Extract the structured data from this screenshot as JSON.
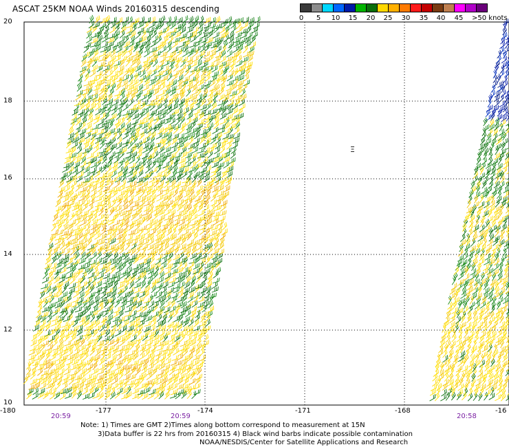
{
  "title": "ASCAT 25KM NOAA Winds 20160315 descending",
  "colorbar": {
    "colors": [
      "#3a3a3a",
      "#8c8c8c",
      "#00d8ff",
      "#0066ff",
      "#001aa8",
      "#00b400",
      "#0a6e0a",
      "#ffd800",
      "#ffb000",
      "#ff7a00",
      "#ff1a1a",
      "#c40000",
      "#7a3b12",
      "#c08050",
      "#ff00ff",
      "#b000c8",
      "#6a007a"
    ],
    "ticks": [
      "0",
      "5",
      "10",
      "15",
      "20",
      "25",
      "30",
      "35",
      "40",
      "45",
      ">50 knots"
    ]
  },
  "latitudes": [
    "20",
    "18",
    "16",
    "14",
    "12",
    "10"
  ],
  "longitudes": [
    "-180",
    "-177",
    "-174",
    "-171",
    "-168",
    "-16"
  ],
  "times": [
    "20:59",
    "20:59",
    "20:58"
  ],
  "island_label": "Ξ",
  "notes": [
    "Note: 1) Times are GMT 2)Times along bottom correspond to measurement at 15N",
    "3)Data buffer is 22 hrs from 20160315 4) Black wind barbs indicate possible contamination",
    "NOAA/NESDIS/Center for Satellite Applications and Research"
  ]
}
